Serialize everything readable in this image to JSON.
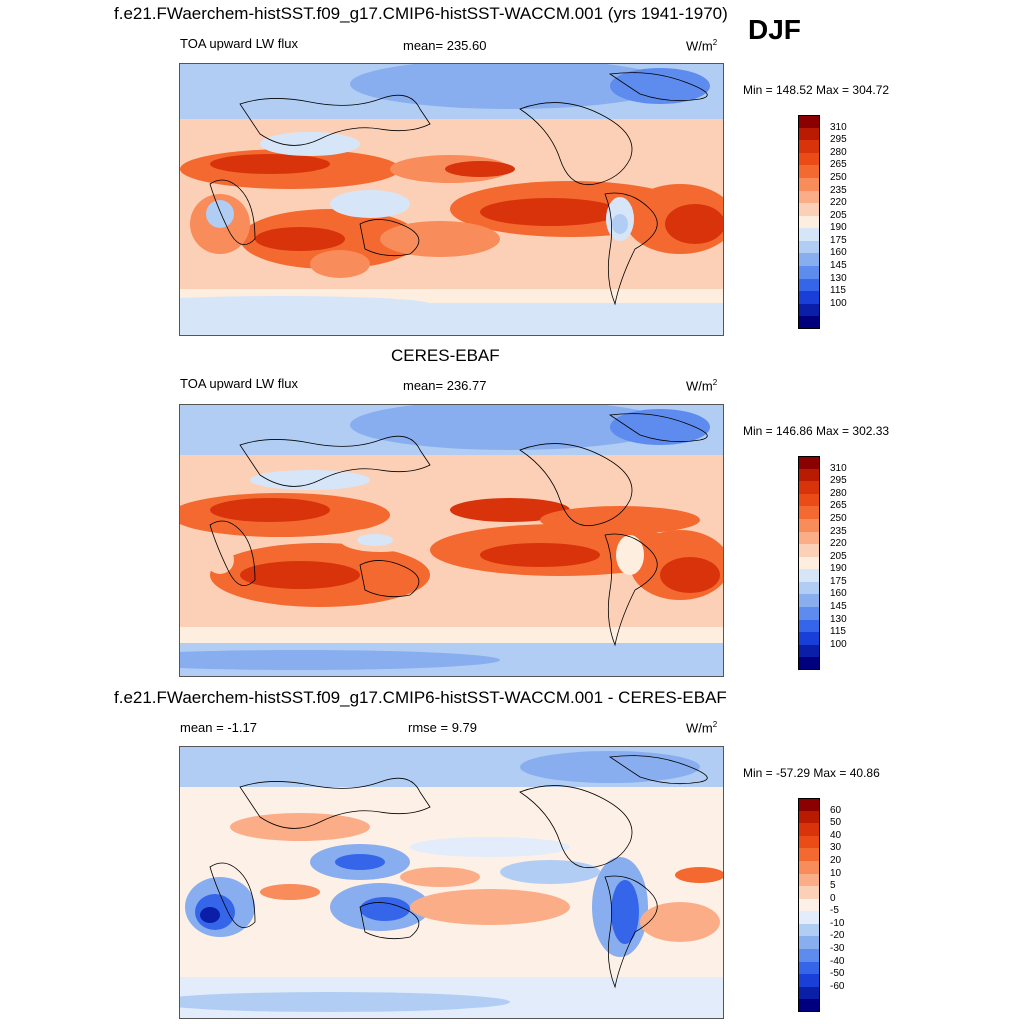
{
  "header": {
    "title": "f.e21.FWaerchem-histSST.f09_g17.CMIP6-histSST-WACCM.001 (yrs 1941-1970)",
    "season": "DJF"
  },
  "panels": [
    {
      "id": "model",
      "title": "",
      "left_label": "TOA upward LW flux",
      "center_label": "mean= 235.60",
      "units": "W/m",
      "units_sup": "2",
      "minmax": "Min = 148.52 Max = 304.72"
    },
    {
      "id": "obs",
      "title": "CERES-EBAF",
      "left_label": "TOA upward LW flux",
      "center_label": "mean= 236.77",
      "units": "W/m",
      "units_sup": "2",
      "minmax": "Min = 146.86 Max = 302.33"
    },
    {
      "id": "diff",
      "title": "f.e21.FWaerchem-histSST.f09_g17.CMIP6-histSST-WACCM.001 - CERES-EBAF",
      "left_label": "mean =  -1.17",
      "center_label": "rmse =   9.79",
      "units": "W/m",
      "units_sup": "2",
      "minmax": "Min = -57.29 Max =  40.86"
    }
  ],
  "colorbars": {
    "flux": {
      "labels": [
        "310",
        "295",
        "280",
        "265",
        "250",
        "235",
        "220",
        "205",
        "190",
        "175",
        "160",
        "145",
        "130",
        "115",
        "100"
      ],
      "colors": [
        "#8b0000",
        "#b81a02",
        "#d8330b",
        "#ea4b17",
        "#f4692f",
        "#f88c5a",
        "#fbad87",
        "#fcd0b6",
        "#fdeee0",
        "#d6e6f8",
        "#b1cdf3",
        "#88aef0",
        "#5d8bee",
        "#3566ea",
        "#1a3fd8",
        "#0a1ea8",
        "#00007e"
      ]
    },
    "diff": {
      "labels": [
        "60",
        "50",
        "40",
        "30",
        "20",
        "10",
        "5",
        "0",
        "-5",
        "-10",
        "-20",
        "-30",
        "-40",
        "-50",
        "-60"
      ],
      "colors": [
        "#8b0000",
        "#b81a02",
        "#d8330b",
        "#ea4b17",
        "#f4692f",
        "#f88c5a",
        "#fbad87",
        "#fcd0b6",
        "#fdf0e6",
        "#e2ecfa",
        "#b1cdf3",
        "#88aef0",
        "#5d8bee",
        "#3566ea",
        "#1a3fd8",
        "#0a1ea8",
        "#00007e"
      ]
    }
  }
}
